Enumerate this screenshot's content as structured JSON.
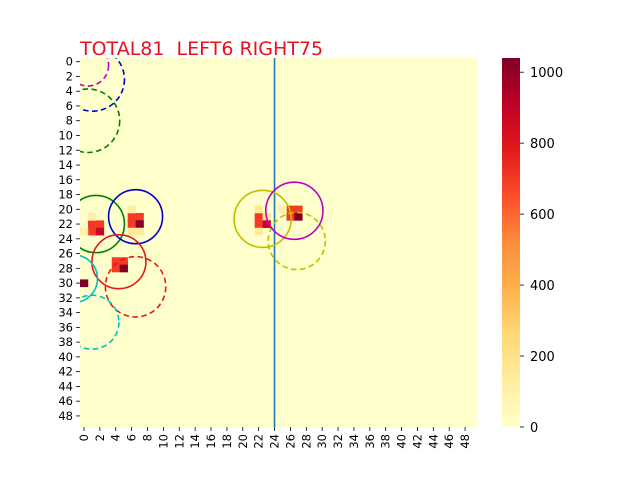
{
  "chart_data": {
    "type": "heatmap",
    "title": "TOTAL81  LEFT6 RIGHT75",
    "title_color": "#e8121c",
    "grid_size": 50,
    "x_ticks": [
      0,
      2,
      4,
      6,
      8,
      10,
      12,
      14,
      16,
      18,
      20,
      22,
      24,
      26,
      28,
      30,
      32,
      34,
      36,
      38,
      40,
      42,
      44,
      46,
      48
    ],
    "y_ticks": [
      0,
      2,
      4,
      6,
      8,
      10,
      12,
      14,
      16,
      18,
      20,
      22,
      24,
      26,
      28,
      30,
      32,
      34,
      36,
      38,
      40,
      42,
      44,
      46,
      48
    ],
    "colorbar": {
      "min": 0,
      "max": 1040,
      "ticks": [
        0,
        200,
        400,
        600,
        800,
        1000
      ],
      "colormap": "YlOrRd",
      "stops": [
        "#ffffcc",
        "#ffeda0",
        "#fed976",
        "#feb24c",
        "#fd8d3c",
        "#fc4e2a",
        "#e31a1c",
        "#bd0026",
        "#800026"
      ]
    },
    "divider": {
      "x": 24.5,
      "color": "#1f77b4"
    },
    "cells": [
      {
        "x": 1,
        "y": 22,
        "v": 700
      },
      {
        "x": 2,
        "y": 22,
        "v": 700
      },
      {
        "x": 1,
        "y": 23,
        "v": 700
      },
      {
        "x": 2,
        "y": 23,
        "v": 880
      },
      {
        "x": 1,
        "y": 21,
        "v": 120
      },
      {
        "x": 0,
        "y": 23,
        "v": 100
      },
      {
        "x": 6,
        "y": 21,
        "v": 700
      },
      {
        "x": 7,
        "y": 21,
        "v": 700
      },
      {
        "x": 6,
        "y": 22,
        "v": 700
      },
      {
        "x": 7,
        "y": 22,
        "v": 1040
      },
      {
        "x": 6,
        "y": 23,
        "v": 150
      },
      {
        "x": 7,
        "y": 23,
        "v": 150
      },
      {
        "x": 6,
        "y": 20,
        "v": 120
      },
      {
        "x": 4,
        "y": 27,
        "v": 700
      },
      {
        "x": 5,
        "y": 27,
        "v": 700
      },
      {
        "x": 4,
        "y": 28,
        "v": 700
      },
      {
        "x": 5,
        "y": 28,
        "v": 1040
      },
      {
        "x": 0,
        "y": 30,
        "v": 1040
      },
      {
        "x": 22,
        "y": 21,
        "v": 700
      },
      {
        "x": 23,
        "y": 21,
        "v": 150
      },
      {
        "x": 22,
        "y": 22,
        "v": 700
      },
      {
        "x": 23,
        "y": 22,
        "v": 880
      },
      {
        "x": 22,
        "y": 20,
        "v": 150
      },
      {
        "x": 22,
        "y": 23,
        "v": 150
      },
      {
        "x": 26,
        "y": 20,
        "v": 700
      },
      {
        "x": 27,
        "y": 20,
        "v": 700
      },
      {
        "x": 26,
        "y": 21,
        "v": 700
      },
      {
        "x": 27,
        "y": 21,
        "v": 1040
      },
      {
        "x": 25,
        "y": 20,
        "v": 120
      }
    ],
    "circles": [
      {
        "cx": 1.0,
        "cy": 1.0,
        "r": 2.6,
        "color": "#bf00bf",
        "style": "dashed"
      },
      {
        "cx": 1.6,
        "cy": 2.9,
        "r": 4.0,
        "color": "#0000cc",
        "style": "dashed"
      },
      {
        "cx": 1.0,
        "cy": 8.5,
        "r": 4.0,
        "color": "#008000",
        "style": "dashed"
      },
      {
        "cx": 2.0,
        "cy": 22.5,
        "r": 3.6,
        "color": "#008000",
        "style": "solid"
      },
      {
        "cx": 7.0,
        "cy": 21.5,
        "r": 3.4,
        "color": "#0000cc",
        "style": "solid"
      },
      {
        "cx": 4.9,
        "cy": 27.6,
        "r": 3.4,
        "color": "#e31a1c",
        "style": "solid"
      },
      {
        "cx": 7.0,
        "cy": 31.0,
        "r": 3.8,
        "color": "#e31a1c",
        "style": "dashed"
      },
      {
        "cx": -0.8,
        "cy": 29.9,
        "r": 3.0,
        "color": "#00bfbf",
        "style": "solid"
      },
      {
        "cx": 1.5,
        "cy": 35.8,
        "r": 3.4,
        "color": "#00bfbf",
        "style": "dashed"
      },
      {
        "cx": 23.0,
        "cy": 21.8,
        "r": 3.6,
        "color": "#bfbf00",
        "style": "solid"
      },
      {
        "cx": 27.3,
        "cy": 24.8,
        "r": 3.6,
        "color": "#bfbf00",
        "style": "dashed"
      },
      {
        "cx": 27.0,
        "cy": 20.7,
        "r": 3.6,
        "color": "#bf00bf",
        "style": "solid"
      }
    ]
  }
}
